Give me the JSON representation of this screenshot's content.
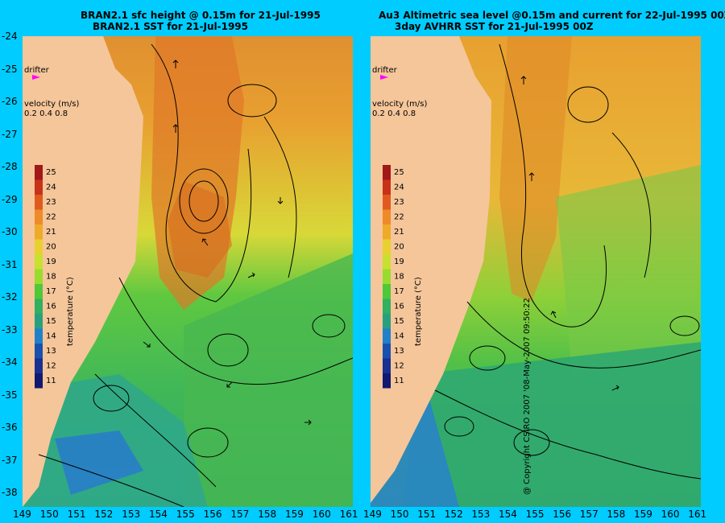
{
  "left_panel": {
    "title_line1": "BRAN2.1 sfc height @ 0.15m for 21-Jul-1995",
    "title_line2": "BRAN2.1 SST for 21-Jul-1995",
    "drifter_label": "drifter",
    "velocity_label": "velocity (m/s)",
    "velocity_ticks": "0.2 0.4 0.8",
    "temperature_label": "temperature (°C)"
  },
  "right_panel": {
    "title_line1": "Au3 Altimetric sea level  @0.15m and current for 22-Jul-1995 00Z",
    "title_line2": "3day AVHRR SST for 21-Jul-1995 00Z",
    "drifter_label": "drifter",
    "velocity_label": "velocity (m/s)",
    "velocity_ticks": "0.2 0.4 0.8",
    "temperature_label": "temperature (°C)"
  },
  "colorbar": {
    "ticks": [
      "25",
      "24",
      "23",
      "22",
      "21",
      "20",
      "19",
      "18",
      "17",
      "16",
      "15",
      "14",
      "13",
      "12",
      "11"
    ],
    "colors": [
      "#a01818",
      "#c83218",
      "#e05a1e",
      "#ee8a28",
      "#f0aa2a",
      "#e8d030",
      "#c8e030",
      "#98dc30",
      "#50c838",
      "#30b060",
      "#28a080",
      "#2080c8",
      "#1850b0",
      "#183090",
      "#101870"
    ]
  },
  "latitudes": [
    "-24",
    "-25",
    "-26",
    "-27",
    "-28",
    "-29",
    "-30",
    "-31",
    "-32",
    "-33",
    "-34",
    "-35",
    "-36",
    "-37",
    "-38"
  ],
  "longitudes_left": [
    "149",
    "150",
    "151",
    "152",
    "153",
    "154",
    "155",
    "156",
    "157",
    "158",
    "159",
    "160",
    "161"
  ],
  "longitudes_right": [
    "149",
    "150",
    "151",
    "152",
    "153",
    "154",
    "155",
    "156",
    "157",
    "158",
    "159",
    "160",
    "161"
  ],
  "copyright": "@ Copyright CSIRO 2007 '08-May-2007 09:50:22"
}
